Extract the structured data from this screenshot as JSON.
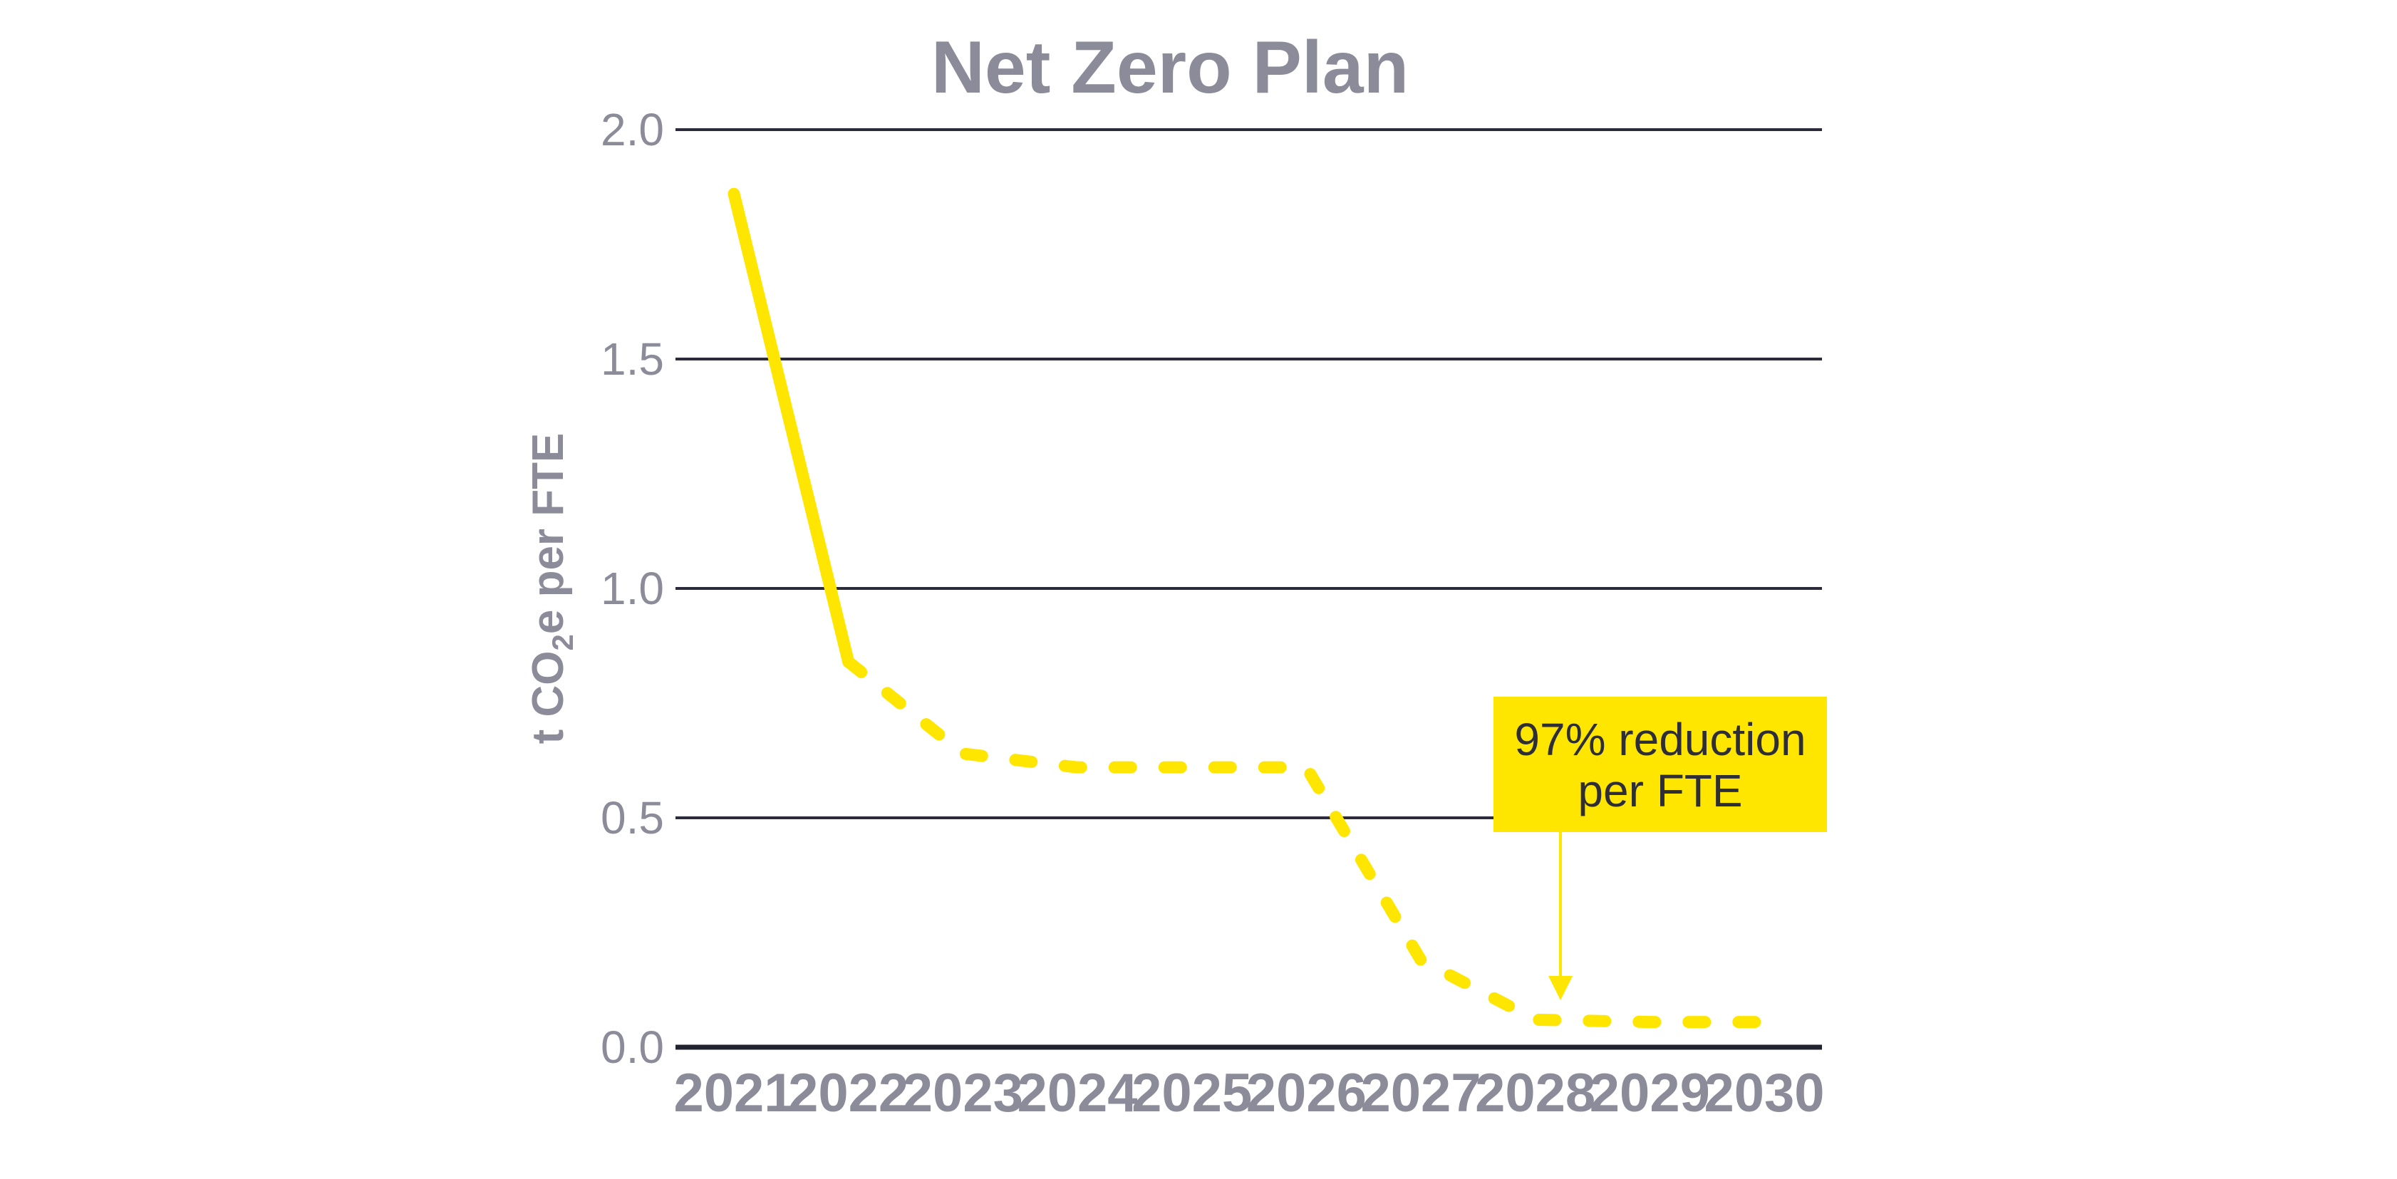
{
  "chart_data": {
    "type": "line",
    "title": "Net Zero Plan",
    "ylabel": "t CO2e per FTE",
    "ylabel_parts": {
      "pre": "t CO",
      "sub": "2",
      "post": "e per FTE"
    },
    "xlabel": "",
    "categories": [
      "2021",
      "2022",
      "2023",
      "2024",
      "2025",
      "2026",
      "2027",
      "2028",
      "2029",
      "2030"
    ],
    "series": [
      {
        "name": "t CO2e per FTE",
        "values": [
          1.86,
          0.84,
          0.64,
          0.61,
          0.61,
          0.61,
          0.19,
          0.06,
          0.055,
          0.055
        ],
        "segments": [
          {
            "from": 0,
            "to": 1,
            "dashed": false
          },
          {
            "from": 1,
            "to": 9,
            "dashed": true
          }
        ]
      }
    ],
    "ylim": [
      0,
      2
    ],
    "yticks": [
      "2.0",
      "1.5",
      "1.0",
      "0.5",
      "0.0"
    ],
    "ytick_values": [
      2.0,
      1.5,
      1.0,
      0.5,
      0.0
    ],
    "grid": "horizontal",
    "legend": "none",
    "annotation": {
      "line1": "97% reduction",
      "line2": "per FTE",
      "target_year": "2028"
    }
  },
  "colors": {
    "accent_yellow": "#FFE600",
    "label_gray": "#8B8B99",
    "grid_dark": "#2B2B3B",
    "axis_dark": "#23232F",
    "annotation_text": "#2E2E38",
    "background": "#FFFFFF"
  }
}
